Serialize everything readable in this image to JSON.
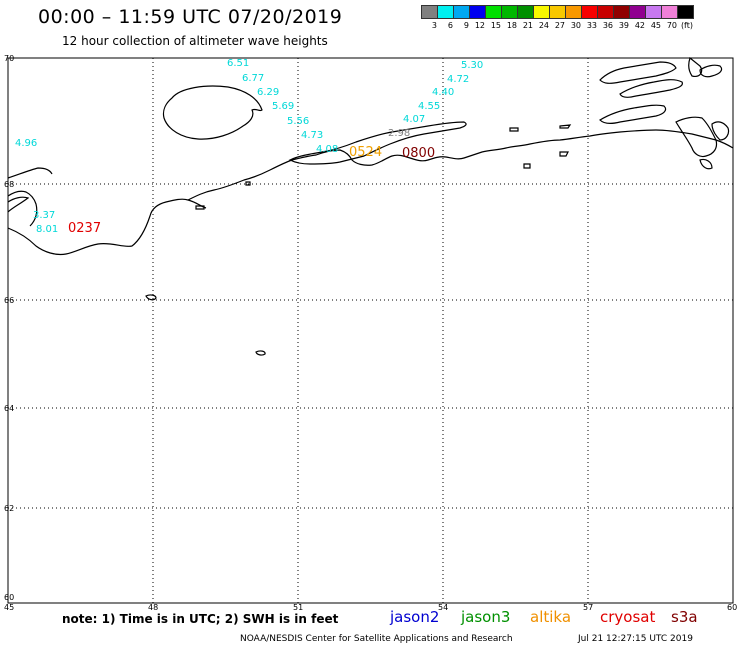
{
  "title": "00:00 – 11:59 UTC 07/20/2019",
  "subtitle": "12 hour collection of altimeter wave heights",
  "scale": {
    "colors": [
      "#808080",
      "#00f0f0",
      "#00a8f0",
      "#0000f0",
      "#00e000",
      "#00b800",
      "#009000",
      "#f8f800",
      "#f8c800",
      "#f89800",
      "#f80000",
      "#c80000",
      "#900000",
      "#900090",
      "#c878f0",
      "#f080d8",
      "#000000"
    ],
    "labels": [
      "3",
      "6",
      "9",
      "12",
      "15",
      "18",
      "21",
      "24",
      "27",
      "30",
      "33",
      "36",
      "39",
      "42",
      "45",
      "70",
      "(ft)"
    ]
  },
  "axes": {
    "lon_ticks": [
      "45",
      "48",
      "51",
      "54",
      "57",
      "60"
    ],
    "lat_ticks": [
      "70",
      "68",
      "66",
      "64",
      "62",
      "60"
    ]
  },
  "wave_labels": [
    {
      "text": "6.51",
      "color": "#00d8d8"
    },
    {
      "text": "6.77",
      "color": "#00d8d8"
    },
    {
      "text": "6.29",
      "color": "#00d8d8"
    },
    {
      "text": "5.69",
      "color": "#00d8d8"
    },
    {
      "text": "5.56",
      "color": "#00d8d8"
    },
    {
      "text": "4.73",
      "color": "#00d8d8"
    },
    {
      "text": "4.08",
      "color": "#00d8d8"
    },
    {
      "text": "5.30",
      "color": "#00d8d8"
    },
    {
      "text": "4.72",
      "color": "#00d8d8"
    },
    {
      "text": "4.40",
      "color": "#00d8d8"
    },
    {
      "text": "4.55",
      "color": "#00d8d8"
    },
    {
      "text": "4.07",
      "color": "#00d8d8"
    },
    {
      "text": "2.98",
      "color": "#808080"
    },
    {
      "text": "4.96",
      "color": "#00d8d8"
    },
    {
      "text": "3.37",
      "color": "#00d8d8"
    },
    {
      "text": "8.01",
      "color": "#00d8d8"
    }
  ],
  "time_labels": [
    {
      "text": "0237",
      "color": "#e00000"
    },
    {
      "text": "0524",
      "color": "#f0a000"
    },
    {
      "text": "0800",
      "color": "#800000"
    }
  ],
  "note": "note:  1) Time is in UTC;  2) SWH is in feet",
  "legend": [
    {
      "text": "jason2",
      "color": "#0000d0"
    },
    {
      "text": "jason3",
      "color": "#009000"
    },
    {
      "text": "altika",
      "color": "#f09000"
    },
    {
      "text": "cryosat",
      "color": "#e00000"
    },
    {
      "text": "s3a",
      "color": "#800000"
    }
  ],
  "credit": "NOAA/NESDIS Center for Satellite Applications and Research",
  "credit_time": "Jul 21 12:27:15 UTC 2019"
}
